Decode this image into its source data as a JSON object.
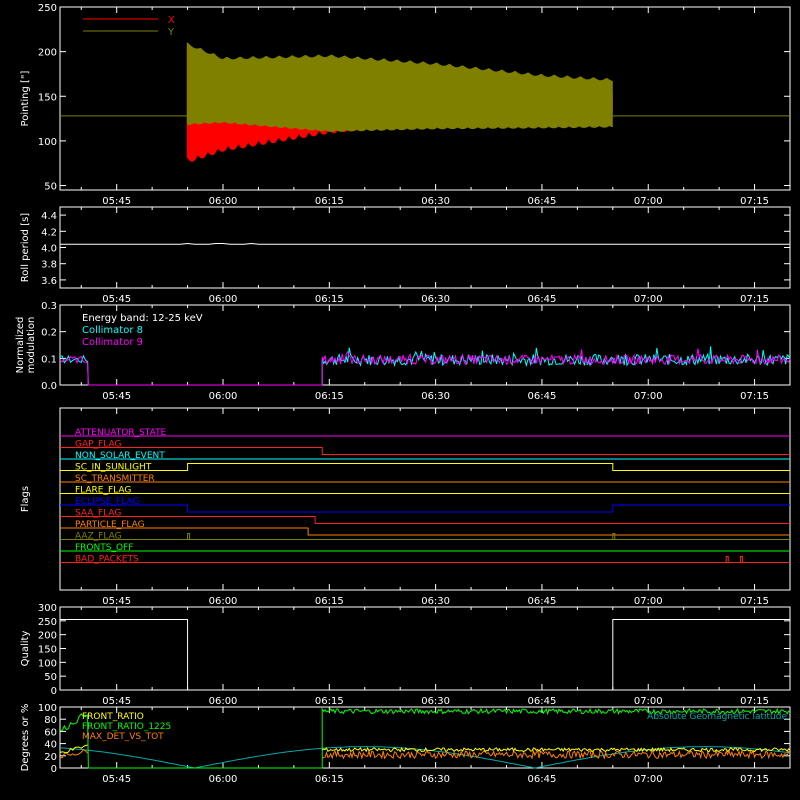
{
  "chart_data": [
    {
      "type": "line",
      "ylabel": "Pointing [\"]",
      "ylim": [
        45,
        250
      ],
      "yticks": [
        50,
        100,
        150,
        200,
        250
      ],
      "xrange": [
        "05:37",
        "07:20"
      ],
      "xticks": [
        "05:45",
        "06:00",
        "06:15",
        "06:30",
        "06:45",
        "07:00",
        "07:15"
      ],
      "series": [
        {
          "name": "X",
          "color": "#ff0000",
          "baseline": 128,
          "start": "05:55",
          "end": "06:55",
          "envelope": [
            [
              "05:55",
              75,
              205
            ],
            [
              "06:00",
              88,
              188
            ],
            [
              "06:15",
              108,
              170
            ],
            [
              "06:30",
              122,
              162
            ],
            [
              "06:45",
              126,
              157
            ],
            [
              "06:55",
              128,
              155
            ]
          ]
        },
        {
          "name": "Y",
          "color": "#808000",
          "baseline": 128,
          "start": "05:55",
          "end": "06:55",
          "envelope": [
            [
              "05:55",
              118,
              210
            ],
            [
              "06:00",
              120,
              194
            ],
            [
              "06:15",
              110,
              197
            ],
            [
              "06:30",
              113,
              188
            ],
            [
              "06:45",
              114,
              175
            ],
            [
              "06:55",
              115,
              170
            ]
          ]
        }
      ]
    },
    {
      "type": "line",
      "ylabel": "Roll period [s]",
      "ylim": [
        3.5,
        4.5
      ],
      "yticks": [
        3.6,
        3.8,
        4.0,
        4.2,
        4.4
      ],
      "series": [
        {
          "name": "",
          "color": "#ffffff",
          "value": 4.04,
          "start": "05:37",
          "end": "07:20"
        }
      ]
    },
    {
      "type": "line",
      "ylabel": "Normalized modulation",
      "ylim": [
        0,
        0.3
      ],
      "yticks": [
        0,
        0.1,
        0.2,
        0.3
      ],
      "annotation": "Energy band: 12-25 keV",
      "series": [
        {
          "name": "Collimator 8",
          "color": "#00ffff",
          "noise_start": "06:14",
          "level": 0.095,
          "spread": 0.03
        },
        {
          "name": "Collimator 9",
          "color": "#ff00ff",
          "noise_start": "06:14",
          "level": 0.095,
          "spread": 0.025
        }
      ],
      "segments": [
        {
          "from": "05:37",
          "to": "05:41",
          "level": 0.095
        },
        {
          "from": "05:41",
          "to": "06:14",
          "level": 0.0
        }
      ]
    },
    {
      "type": "line",
      "ylabel": "Flags",
      "flags": [
        {
          "name": "ATTENUATOR_STATE",
          "color": "#ff00ff",
          "steps": []
        },
        {
          "name": "GAP_FLAG",
          "color": "#ff2020",
          "steps": [
            [
              "06:14",
              -1
            ]
          ]
        },
        {
          "name": "NON_SOLAR_EVENT",
          "color": "#00ffff",
          "steps": []
        },
        {
          "name": "SC_IN_SUNLIGHT",
          "color": "#ffff00",
          "steps": [
            [
              "05:55",
              1
            ],
            [
              "06:55",
              -1
            ]
          ]
        },
        {
          "name": "SC_TRANSMITTER",
          "color": "#ff8000",
          "steps": []
        },
        {
          "name": "FLARE_FLAG",
          "color": "#ffff00",
          "steps": []
        },
        {
          "name": "ECLIPSE_FLAG",
          "color": "#0000ff",
          "steps": [
            [
              "05:55",
              -1
            ],
            [
              "06:55",
              1
            ]
          ]
        },
        {
          "name": "SAA_FLAG",
          "color": "#ff2020",
          "steps": [
            [
              "06:13",
              -1
            ]
          ]
        },
        {
          "name": "PARTICLE_FLAG",
          "color": "#ff8000",
          "steps": [
            [
              "06:12",
              -1
            ]
          ]
        },
        {
          "name": "AAZ_FLAG",
          "color": "#808000",
          "steps": [],
          "pulses": [
            "05:55",
            "06:55"
          ]
        },
        {
          "name": "FRONTS_OFF",
          "color": "#00ff00",
          "steps": []
        },
        {
          "name": "BAD_PACKETS",
          "color": "#ff2020",
          "steps": [],
          "pulses": [
            "07:11",
            "07:13"
          ]
        }
      ]
    },
    {
      "type": "line",
      "ylabel": "Quality",
      "ylim": [
        0,
        300
      ],
      "yticks": [
        0,
        50,
        100,
        150,
        200,
        250,
        300
      ],
      "series": [
        {
          "name": "",
          "color": "#ffffff",
          "steps": [
            [
              "05:37",
              255
            ],
            [
              "05:55",
              0
            ],
            [
              "06:55",
              255
            ],
            [
              "07:20",
              255
            ]
          ]
        }
      ]
    },
    {
      "type": "line",
      "ylabel": "Degrees or %",
      "ylim": [
        0,
        100
      ],
      "yticks": [
        0,
        20,
        40,
        60,
        80,
        100
      ],
      "legend_right": "Absolute Geomagnetic latitude",
      "series": [
        {
          "name": "FRONT_RATIO",
          "color": "#ffff00",
          "level": 30,
          "spread": 3
        },
        {
          "name": "FRONT_RATIO_1225",
          "color": "#00ff00",
          "level": 93,
          "spread": 4
        },
        {
          "name": "MAX_DET_VS_TOT",
          "color": "#ff8000",
          "level": 22,
          "spread": 6
        },
        {
          "name": "Absolute Geomagnetic latitude",
          "color": "#00aaaa",
          "amplitude": 35,
          "period_min": 48,
          "phase": "05:56"
        }
      ]
    }
  ]
}
